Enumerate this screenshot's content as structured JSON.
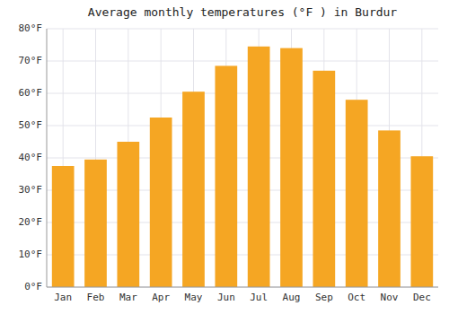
{
  "chart_data": {
    "type": "bar",
    "title": "Average monthly temperatures (°F ) in Burdur",
    "categories": [
      "Jan",
      "Feb",
      "Mar",
      "Apr",
      "May",
      "Jun",
      "Jul",
      "Aug",
      "Sep",
      "Oct",
      "Nov",
      "Dec"
    ],
    "values": [
      37.5,
      39.5,
      45.0,
      52.5,
      60.5,
      68.5,
      74.5,
      74.0,
      67.0,
      58.0,
      48.5,
      40.5
    ],
    "color": "#F5A623",
    "ylim": [
      0,
      80
    ],
    "yticks": [
      {
        "value": 0,
        "label": "0°F"
      },
      {
        "value": 10,
        "label": "10°F"
      },
      {
        "value": 20,
        "label": "20°F"
      },
      {
        "value": 30,
        "label": "30°F"
      },
      {
        "value": 40,
        "label": "40°F"
      },
      {
        "value": 50,
        "label": "50°F"
      },
      {
        "value": 60,
        "label": "60°F"
      },
      {
        "value": 70,
        "label": "70°F"
      },
      {
        "value": 80,
        "label": "80°F"
      }
    ],
    "grid": true
  }
}
